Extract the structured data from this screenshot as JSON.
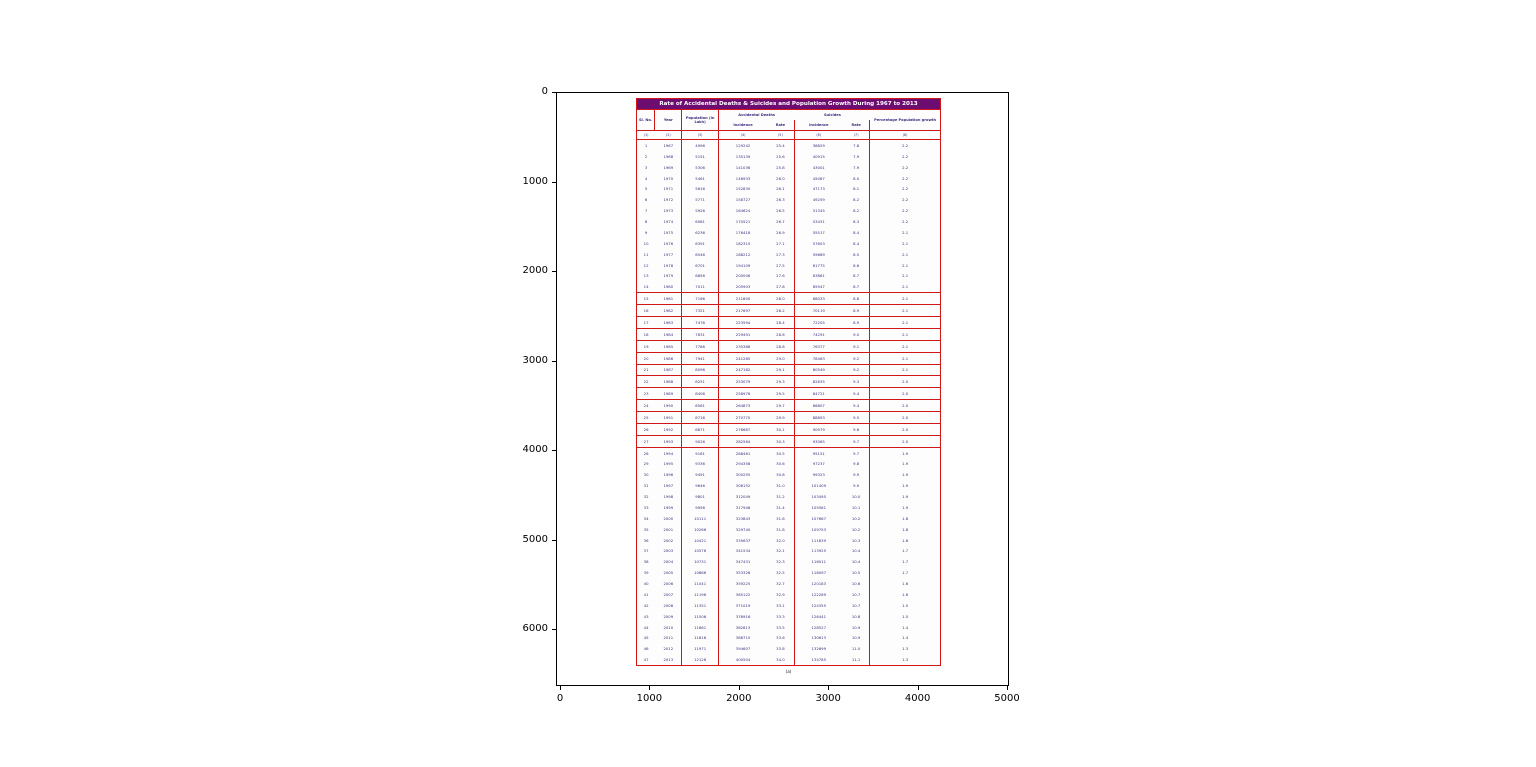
{
  "figure": {
    "background": "#ffffff",
    "x_ticks": [
      0,
      1000,
      2000,
      3000,
      4000,
      5000
    ],
    "y_ticks": [
      0,
      1000,
      2000,
      3000,
      4000,
      5000,
      6000
    ]
  },
  "colors": {
    "title_bg": "#6d0d72",
    "table_border": "#d01616",
    "table_text": "#3f2a7d"
  },
  "chart_data": {
    "type": "table",
    "title": "Rate of Accidental Deaths & Suicides and Population Growth During 1967 to 2013",
    "caption": "(a)",
    "header": {
      "sl": "Sl. No.",
      "year": "Year",
      "population": "Population (in Lakh)",
      "accidental": "Accidental Deaths",
      "suicides": "Suicides",
      "incidence": "Incidence",
      "rate": "Rate",
      "pct": "Percentage Population growth"
    },
    "col_numbers": [
      "(1)",
      "(2)",
      "(3)",
      "(4)",
      "(5)",
      "(6)",
      "(7)",
      "(8)"
    ],
    "columns": [
      "Sl. No.",
      "Year",
      "Population (in Lakh)",
      "Accidental Deaths Incidence",
      "Accidental Deaths Rate",
      "Suicides Incidence",
      "Suicides Rate",
      "Percentage Population growth"
    ],
    "rows": [
      [
        "1",
        "1967",
        "4996",
        "129242",
        "25.4",
        "38829",
        "7.8",
        "2.2"
      ],
      [
        "2",
        "1968",
        "5151",
        "135139",
        "25.6",
        "40915",
        "7.9",
        "2.2"
      ],
      [
        "3",
        "1969",
        "5306",
        "141036",
        "25.8",
        "43001",
        "7.9",
        "2.2"
      ],
      [
        "4",
        "1970",
        "5461",
        "146933",
        "26.0",
        "45087",
        "8.0",
        "2.2"
      ],
      [
        "5",
        "1971",
        "5616",
        "152830",
        "26.1",
        "47173",
        "8.1",
        "2.2"
      ],
      [
        "6",
        "1972",
        "5771",
        "158727",
        "26.3",
        "49259",
        "8.2",
        "2.2"
      ],
      [
        "7",
        "1973",
        "5926",
        "164624",
        "26.5",
        "51345",
        "8.2",
        "2.2"
      ],
      [
        "8",
        "1974",
        "6081",
        "170521",
        "26.7",
        "53431",
        "8.3",
        "2.2"
      ],
      [
        "9",
        "1975",
        "6236",
        "176418",
        "26.9",
        "55517",
        "8.4",
        "2.1"
      ],
      [
        "10",
        "1976",
        "6391",
        "182315",
        "27.1",
        "57603",
        "8.4",
        "2.1"
      ],
      [
        "11",
        "1977",
        "6546",
        "188212",
        "27.3",
        "59689",
        "8.5",
        "2.1"
      ],
      [
        "12",
        "1978",
        "6701",
        "194109",
        "27.5",
        "61775",
        "8.6",
        "2.1"
      ],
      [
        "13",
        "1979",
        "6856",
        "200006",
        "27.6",
        "63861",
        "8.7",
        "2.1"
      ],
      [
        "14",
        "1980",
        "7011",
        "205903",
        "27.8",
        "65947",
        "8.7",
        "2.1"
      ],
      [
        "15",
        "1981",
        "7166",
        "211800",
        "28.0",
        "68033",
        "8.8",
        "2.1"
      ],
      [
        "16",
        "1982",
        "7321",
        "217697",
        "28.2",
        "70119",
        "8.9",
        "2.1"
      ],
      [
        "17",
        "1983",
        "7476",
        "223594",
        "28.4",
        "72205",
        "8.9",
        "2.1"
      ],
      [
        "18",
        "1984",
        "7631",
        "229491",
        "28.6",
        "74291",
        "9.0",
        "2.1"
      ],
      [
        "19",
        "1985",
        "7786",
        "235388",
        "28.8",
        "76377",
        "9.1",
        "2.1"
      ],
      [
        "20",
        "1986",
        "7941",
        "241285",
        "29.0",
        "78463",
        "9.2",
        "2.1"
      ],
      [
        "21",
        "1987",
        "8096",
        "247182",
        "29.1",
        "80549",
        "9.2",
        "2.1"
      ],
      [
        "22",
        "1988",
        "8251",
        "253079",
        "29.3",
        "82635",
        "9.3",
        "2.0"
      ],
      [
        "23",
        "1989",
        "8406",
        "258976",
        "29.5",
        "84721",
        "9.4",
        "2.0"
      ],
      [
        "24",
        "1990",
        "8561",
        "264873",
        "29.7",
        "86807",
        "9.4",
        "2.0"
      ],
      [
        "25",
        "1991",
        "8716",
        "270770",
        "29.9",
        "88893",
        "9.5",
        "2.0"
      ],
      [
        "26",
        "1992",
        "8871",
        "276667",
        "30.1",
        "90979",
        "9.6",
        "2.0"
      ],
      [
        "27",
        "1993",
        "9026",
        "282564",
        "30.3",
        "93065",
        "9.7",
        "2.0"
      ],
      [
        "28",
        "1994",
        "9181",
        "288461",
        "30.5",
        "95151",
        "9.7",
        "1.9"
      ],
      [
        "29",
        "1995",
        "9336",
        "294358",
        "30.6",
        "97237",
        "9.8",
        "1.9"
      ],
      [
        "30",
        "1996",
        "9491",
        "300255",
        "30.8",
        "99323",
        "9.9",
        "1.9"
      ],
      [
        "31",
        "1997",
        "9646",
        "306152",
        "31.0",
        "101409",
        "9.9",
        "1.9"
      ],
      [
        "32",
        "1998",
        "9801",
        "312049",
        "31.2",
        "103495",
        "10.0",
        "1.9"
      ],
      [
        "33",
        "1999",
        "9956",
        "317946",
        "31.4",
        "105581",
        "10.1",
        "1.9"
      ],
      [
        "34",
        "2000",
        "10111",
        "323843",
        "31.6",
        "107667",
        "10.2",
        "1.8"
      ],
      [
        "35",
        "2001",
        "10266",
        "329740",
        "31.8",
        "109753",
        "10.2",
        "1.8"
      ],
      [
        "36",
        "2002",
        "10421",
        "335637",
        "32.0",
        "111839",
        "10.3",
        "1.8"
      ],
      [
        "37",
        "2003",
        "10576",
        "341534",
        "32.1",
        "113925",
        "10.4",
        "1.7"
      ],
      [
        "38",
        "2004",
        "10731",
        "347431",
        "32.3",
        "116011",
        "10.4",
        "1.7"
      ],
      [
        "39",
        "2005",
        "10886",
        "353328",
        "32.5",
        "118097",
        "10.5",
        "1.7"
      ],
      [
        "40",
        "2006",
        "11041",
        "359225",
        "32.7",
        "120183",
        "10.6",
        "1.6"
      ],
      [
        "41",
        "2007",
        "11196",
        "365122",
        "32.9",
        "122269",
        "10.7",
        "1.6"
      ],
      [
        "42",
        "2008",
        "11351",
        "371019",
        "33.1",
        "124355",
        "10.7",
        "1.5"
      ],
      [
        "43",
        "2009",
        "11506",
        "376916",
        "33.3",
        "126441",
        "10.8",
        "1.5"
      ],
      [
        "44",
        "2010",
        "11661",
        "382813",
        "33.5",
        "128527",
        "10.9",
        "1.4"
      ],
      [
        "45",
        "2011",
        "11816",
        "388710",
        "33.6",
        "130613",
        "10.9",
        "1.4"
      ],
      [
        "46",
        "2012",
        "11971",
        "394607",
        "33.8",
        "132699",
        "11.0",
        "1.3"
      ],
      [
        "47",
        "2013",
        "12126",
        "400504",
        "34.0",
        "134785",
        "11.1",
        "1.3"
      ]
    ],
    "boxed_row_range": [
      15,
      27
    ]
  }
}
